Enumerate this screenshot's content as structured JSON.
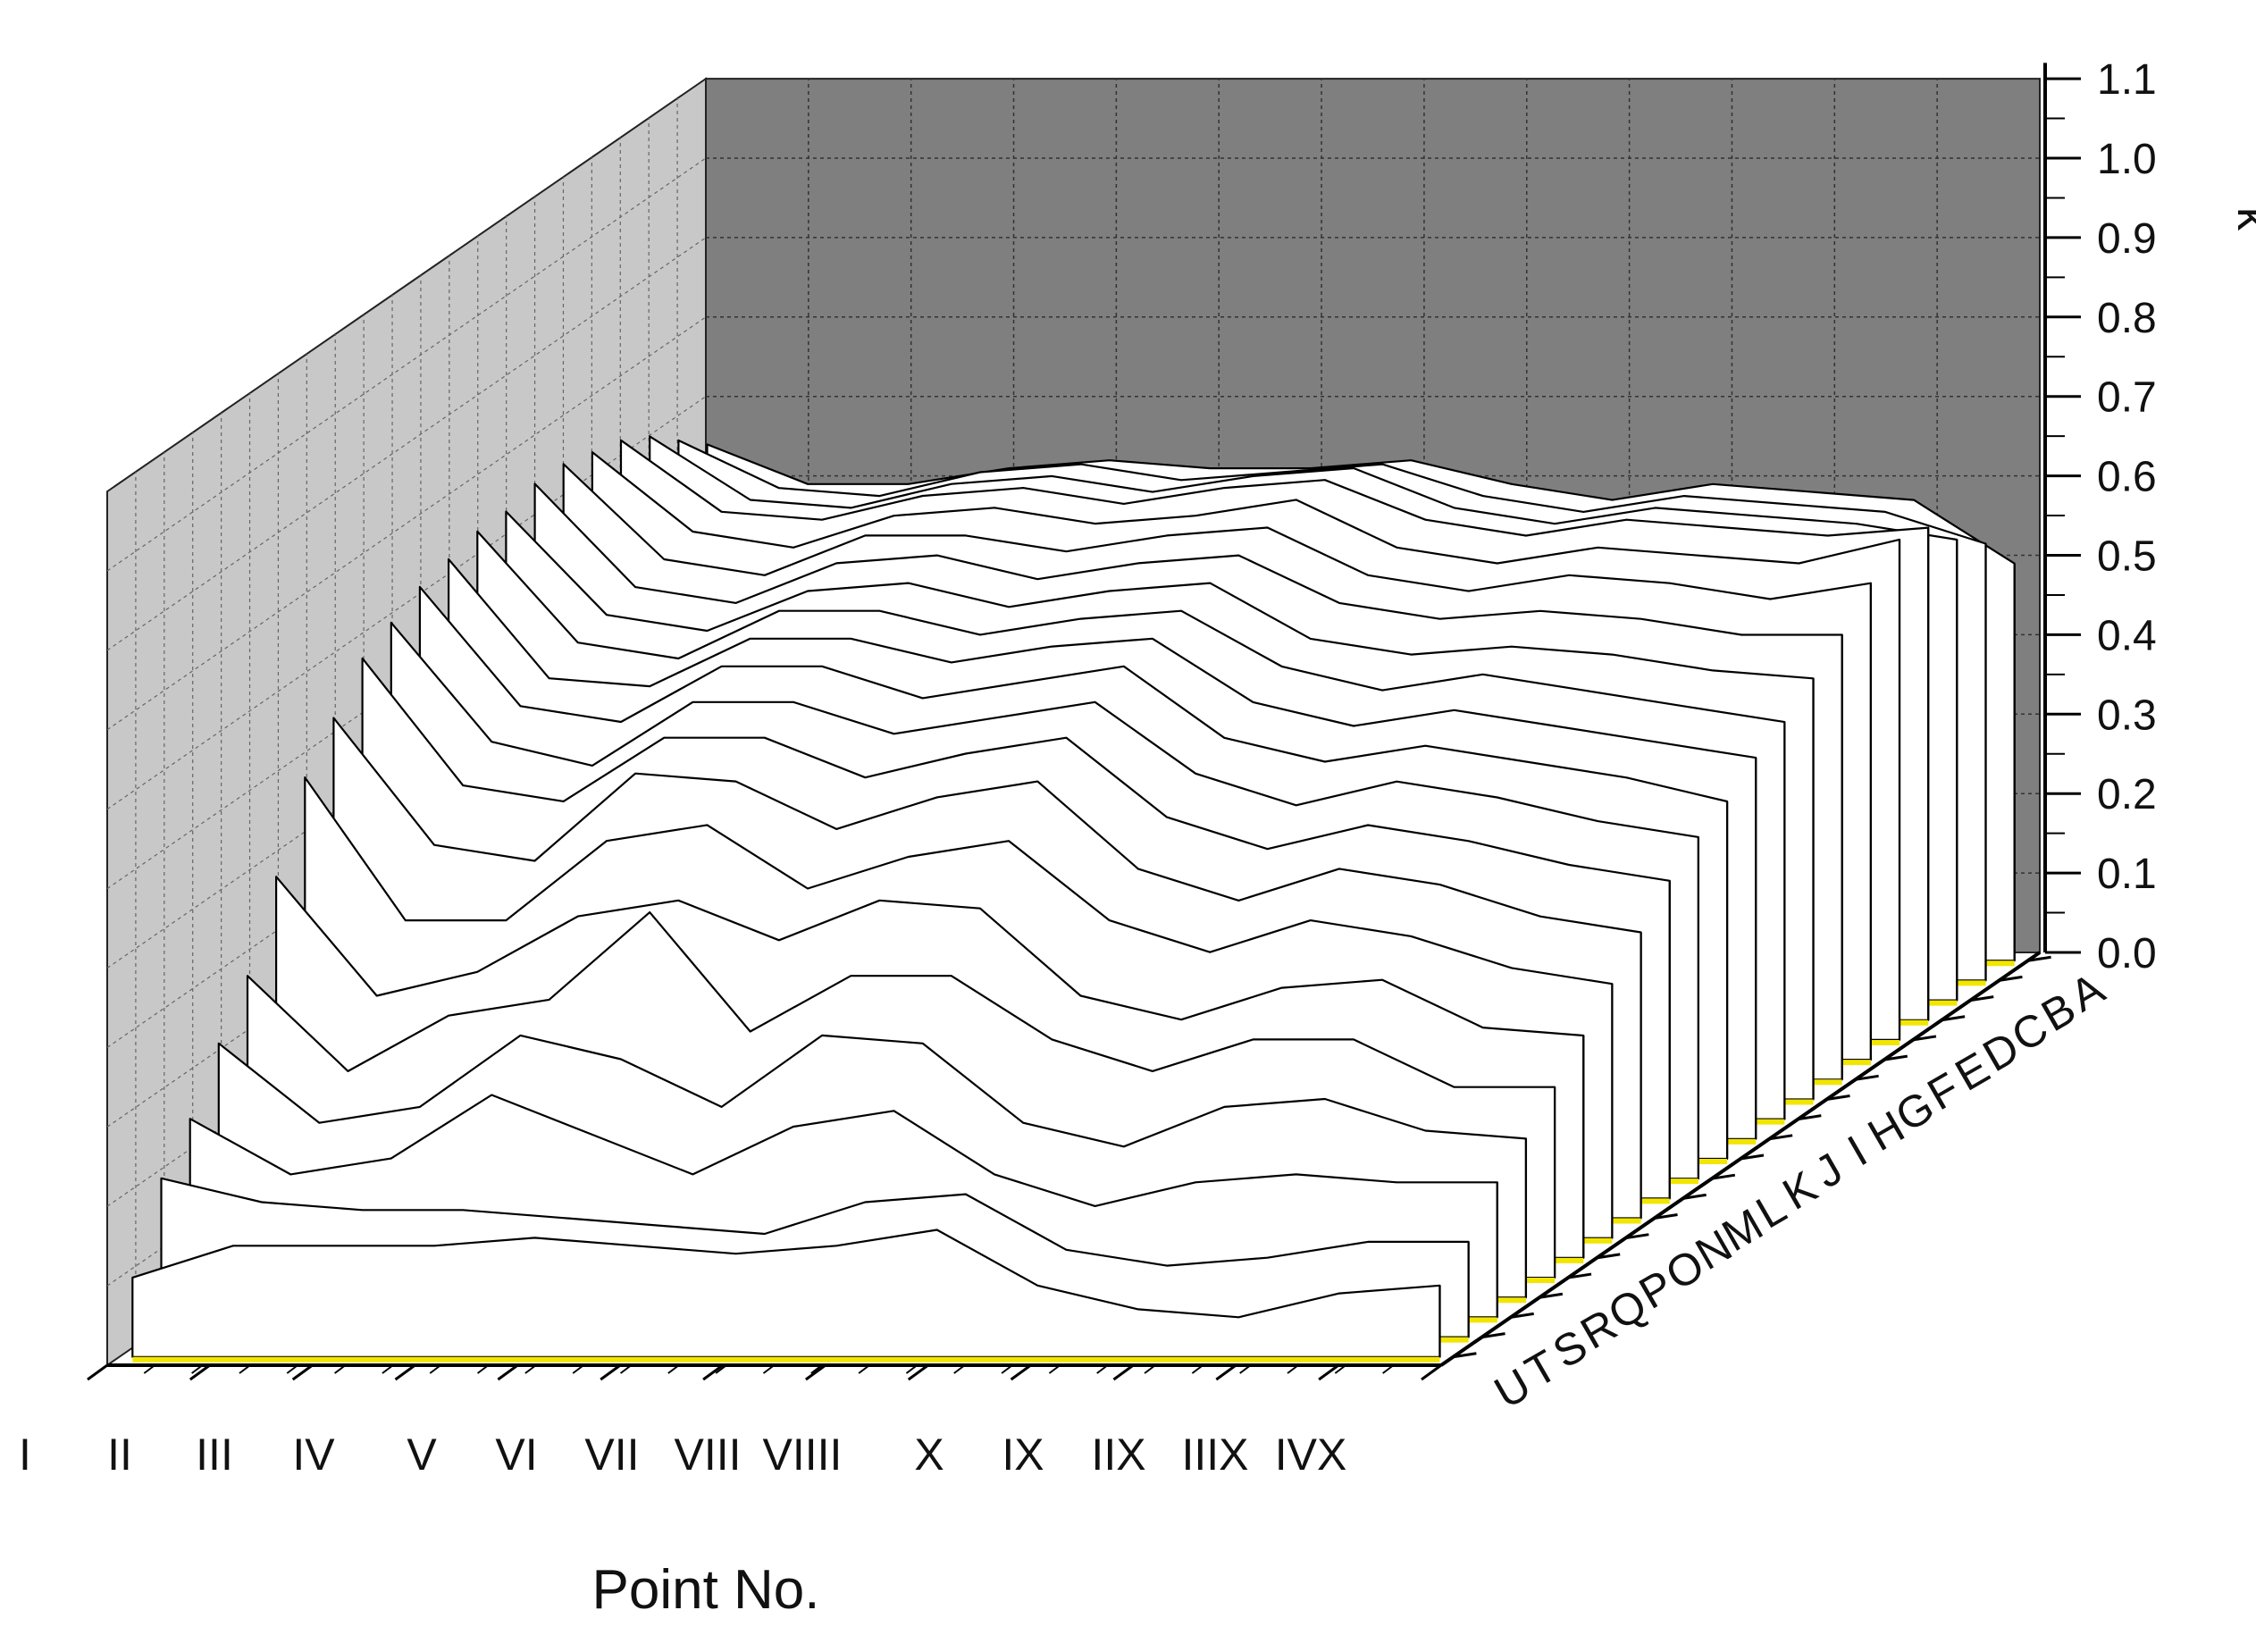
{
  "chart_data": {
    "type": "area",
    "title": "",
    "xlabel": "Point No.",
    "ylabel": "",
    "zlabel": "k",
    "ylim": [
      0,
      1.1
    ],
    "z_ticks": [
      "0.0",
      "0.1",
      "0.2",
      "0.3",
      "0.4",
      "0.5",
      "0.6",
      "0.7",
      "0.8",
      "0.9",
      "1.0",
      "1.1"
    ],
    "x": [
      "I",
      "II",
      "III",
      "IV",
      "V",
      "VI",
      "VII",
      "VIII",
      "VIIII",
      "X",
      "IX",
      "IIX",
      "IIIX",
      "IVX"
    ],
    "depth_labels": [
      "A",
      "B",
      "C",
      "D",
      "E",
      "F",
      "G",
      "H",
      "I",
      "J",
      "K",
      "L",
      "M",
      "N",
      "O",
      "P",
      "Q",
      "R",
      "S",
      "T",
      "U"
    ],
    "grid": true,
    "series": [
      {
        "name": "U",
        "values": [
          0.1,
          0.14,
          0.14,
          0.14,
          0.15,
          0.14,
          0.13,
          0.14,
          0.16,
          0.09,
          0.06,
          0.05,
          0.08,
          0.09
        ]
      },
      {
        "name": "T",
        "values": [
          0.2,
          0.17,
          0.16,
          0.16,
          0.15,
          0.14,
          0.13,
          0.17,
          0.18,
          0.11,
          0.09,
          0.1,
          0.12,
          0.12
        ]
      },
      {
        "name": "S",
        "values": [
          0.25,
          0.18,
          0.2,
          0.28,
          0.23,
          0.18,
          0.24,
          0.26,
          0.18,
          0.14,
          0.17,
          0.18,
          0.17,
          0.17
        ]
      },
      {
        "name": "R",
        "values": [
          0.32,
          0.22,
          0.24,
          0.33,
          0.3,
          0.24,
          0.33,
          0.32,
          0.22,
          0.19,
          0.24,
          0.25,
          0.21,
          0.2
        ]
      },
      {
        "name": "Q",
        "values": [
          0.38,
          0.26,
          0.33,
          0.35,
          0.46,
          0.31,
          0.38,
          0.38,
          0.3,
          0.26,
          0.3,
          0.3,
          0.24,
          0.24
        ]
      },
      {
        "name": "P",
        "values": [
          0.48,
          0.33,
          0.36,
          0.43,
          0.45,
          0.4,
          0.45,
          0.44,
          0.33,
          0.3,
          0.34,
          0.35,
          0.29,
          0.28
        ]
      },
      {
        "name": "O",
        "values": [
          0.58,
          0.4,
          0.4,
          0.5,
          0.52,
          0.44,
          0.48,
          0.5,
          0.4,
          0.36,
          0.4,
          0.38,
          0.34,
          0.32
        ]
      },
      {
        "name": "N",
        "values": [
          0.63,
          0.47,
          0.45,
          0.56,
          0.55,
          0.49,
          0.53,
          0.55,
          0.44,
          0.4,
          0.44,
          0.42,
          0.38,
          0.36
        ]
      },
      {
        "name": "M",
        "values": [
          0.68,
          0.52,
          0.5,
          0.58,
          0.58,
          0.53,
          0.56,
          0.58,
          0.48,
          0.44,
          0.47,
          0.45,
          0.42,
          0.4
        ]
      },
      {
        "name": "L",
        "values": [
          0.7,
          0.55,
          0.52,
          0.6,
          0.6,
          0.56,
          0.58,
          0.6,
          0.51,
          0.47,
          0.5,
          0.48,
          0.45,
          0.43
        ]
      },
      {
        "name": "K",
        "values": [
          0.72,
          0.57,
          0.55,
          0.62,
          0.62,
          0.58,
          0.6,
          0.62,
          0.53,
          0.5,
          0.52,
          0.5,
          0.48,
          0.45
        ]
      },
      {
        "name": "J",
        "values": [
          0.73,
          0.58,
          0.57,
          0.63,
          0.63,
          0.6,
          0.62,
          0.63,
          0.55,
          0.52,
          0.54,
          0.52,
          0.5,
          0.48
        ]
      },
      {
        "name": "I",
        "values": [
          0.74,
          0.6,
          0.58,
          0.64,
          0.64,
          0.61,
          0.63,
          0.64,
          0.57,
          0.54,
          0.56,
          0.54,
          0.52,
          0.5
        ]
      },
      {
        "name": "H",
        "values": [
          0.74,
          0.61,
          0.59,
          0.64,
          0.65,
          0.62,
          0.64,
          0.65,
          0.58,
          0.56,
          0.57,
          0.56,
          0.54,
          0.53
        ]
      },
      {
        "name": "G",
        "values": [
          0.75,
          0.62,
          0.6,
          0.65,
          0.66,
          0.63,
          0.65,
          0.66,
          0.6,
          0.58,
          0.59,
          0.58,
          0.56,
          0.56
        ]
      },
      {
        "name": "F",
        "values": [
          0.75,
          0.63,
          0.61,
          0.66,
          0.66,
          0.64,
          0.66,
          0.67,
          0.61,
          0.59,
          0.61,
          0.6,
          0.58,
          0.6
        ]
      },
      {
        "name": "E",
        "values": [
          0.74,
          0.64,
          0.62,
          0.66,
          0.67,
          0.65,
          0.66,
          0.68,
          0.62,
          0.6,
          0.62,
          0.61,
          0.6,
          0.63
        ]
      },
      {
        "name": "D",
        "values": [
          0.73,
          0.64,
          0.63,
          0.66,
          0.67,
          0.65,
          0.67,
          0.68,
          0.63,
          0.61,
          0.63,
          0.62,
          0.61,
          0.62
        ]
      },
      {
        "name": "C",
        "values": [
          0.71,
          0.63,
          0.62,
          0.65,
          0.66,
          0.64,
          0.66,
          0.67,
          0.62,
          0.6,
          0.62,
          0.61,
          0.6,
          0.58
        ]
      },
      {
        "name": "B",
        "values": [
          0.68,
          0.62,
          0.61,
          0.64,
          0.65,
          0.63,
          0.64,
          0.65,
          0.61,
          0.59,
          0.61,
          0.6,
          0.59,
          0.55
        ]
      },
      {
        "name": "A",
        "values": [
          0.65,
          0.6,
          0.6,
          0.62,
          0.63,
          0.62,
          0.62,
          0.63,
          0.6,
          0.58,
          0.6,
          0.59,
          0.58,
          0.5
        ]
      }
    ]
  }
}
